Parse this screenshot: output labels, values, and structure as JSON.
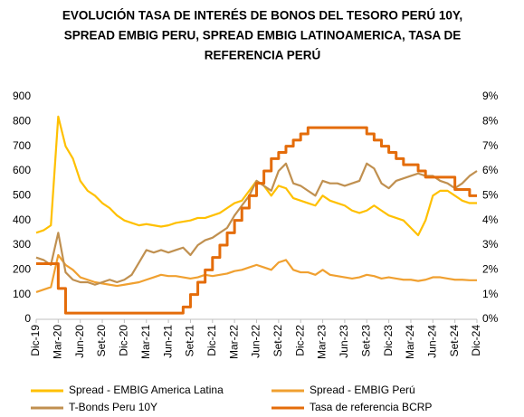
{
  "chart_data": {
    "type": "line",
    "title": [
      "EVOLUCIÓN TASA DE INTERÉS DE BONOS DEL TESORO PERÚ 10Y,",
      "SPREAD EMBIG PERU, SPREAD EMBIG LATINOAMERICA, TASA DE",
      "REFERENCIA PERÚ"
    ],
    "categories": [
      "Dic-19",
      null,
      null,
      "Mar-20",
      null,
      null,
      "Jun-20",
      null,
      null,
      "Set-20",
      null,
      null,
      "Dic-20",
      null,
      null,
      "Mar-21",
      null,
      null,
      "Jun-21",
      null,
      null,
      "Set-21",
      null,
      null,
      "Dic-21",
      null,
      null,
      "Mar-22",
      null,
      null,
      "Jun-22",
      null,
      null,
      "Set-22",
      null,
      null,
      "Dic-22",
      null,
      null,
      "Mar-23",
      null,
      null,
      "Jun-23",
      null,
      null,
      "Set-23",
      null,
      null,
      "Dic-23",
      null,
      null,
      "Mar-24",
      null,
      null,
      "Jun-24",
      null,
      null,
      "Set-24",
      null,
      null,
      "Dic-24"
    ],
    "series": [
      {
        "name": "Spread - EMBIG America Latina",
        "color": "#ffc000",
        "axis": "y",
        "values": [
          350,
          360,
          380,
          820,
          700,
          650,
          560,
          520,
          500,
          470,
          450,
          420,
          400,
          390,
          380,
          385,
          380,
          375,
          380,
          390,
          395,
          400,
          410,
          410,
          420,
          430,
          450,
          470,
          480,
          520,
          560,
          540,
          500,
          540,
          530,
          490,
          480,
          470,
          460,
          500,
          480,
          470,
          460,
          440,
          430,
          440,
          460,
          440,
          420,
          410,
          400,
          370,
          340,
          400,
          500,
          520,
          520,
          500,
          480,
          470,
          470
        ]
      },
      {
        "name": "Spread - EMBIG Perú",
        "color": "#f0a030",
        "axis": "y",
        "values": [
          110,
          120,
          130,
          260,
          220,
          200,
          170,
          160,
          150,
          145,
          140,
          135,
          140,
          145,
          150,
          160,
          170,
          180,
          175,
          175,
          170,
          165,
          170,
          180,
          175,
          180,
          185,
          195,
          200,
          210,
          220,
          210,
          200,
          230,
          240,
          200,
          190,
          190,
          180,
          200,
          180,
          175,
          170,
          165,
          170,
          180,
          175,
          165,
          170,
          165,
          160,
          160,
          155,
          160,
          170,
          170,
          165,
          160,
          160,
          158,
          158
        ]
      },
      {
        "name": "T-Bonds Peru 10Y",
        "color": "#c09050",
        "axis": "y2",
        "values": [
          2.5,
          2.4,
          2.2,
          3.5,
          1.9,
          1.6,
          1.5,
          1.5,
          1.4,
          1.5,
          1.6,
          1.5,
          1.6,
          1.8,
          2.3,
          2.8,
          2.7,
          2.8,
          2.7,
          2.8,
          2.9,
          2.6,
          3.0,
          3.2,
          3.3,
          3.5,
          3.7,
          4.2,
          4.6,
          5.0,
          5.6,
          5.4,
          5.2,
          6.0,
          6.3,
          5.5,
          5.4,
          5.2,
          5.0,
          5.6,
          5.5,
          5.5,
          5.4,
          5.5,
          5.6,
          6.3,
          6.1,
          5.5,
          5.3,
          5.6,
          5.7,
          5.8,
          5.9,
          5.8,
          5.8,
          5.6,
          5.5,
          5.3,
          5.5,
          5.8,
          6.0
        ]
      },
      {
        "name": "Tasa de referencia BCRP",
        "color": "#e46c0a",
        "axis": "y2",
        "step": true,
        "values": [
          2.25,
          2.25,
          2.25,
          1.25,
          0.25,
          0.25,
          0.25,
          0.25,
          0.25,
          0.25,
          0.25,
          0.25,
          0.25,
          0.25,
          0.25,
          0.25,
          0.25,
          0.25,
          0.25,
          0.25,
          0.5,
          1.0,
          1.5,
          2.0,
          2.5,
          3.0,
          3.5,
          4.0,
          4.5,
          5.0,
          5.5,
          6.0,
          6.5,
          6.75,
          7.0,
          7.25,
          7.5,
          7.75,
          7.75,
          7.75,
          7.75,
          7.75,
          7.75,
          7.75,
          7.75,
          7.5,
          7.25,
          7.0,
          6.75,
          6.5,
          6.25,
          6.25,
          6.0,
          5.75,
          5.75,
          5.75,
          5.75,
          5.25,
          5.25,
          5.0,
          5.0
        ]
      }
    ],
    "ylim": [
      0,
      900
    ],
    "yticks": [
      0,
      100,
      200,
      300,
      400,
      500,
      600,
      700,
      800,
      900
    ],
    "y2lim": [
      0,
      9
    ],
    "y2ticks": [
      {
        "value": 0,
        "label": "0%"
      },
      {
        "value": 1,
        "label": "1%"
      },
      {
        "value": 2,
        "label": "2%"
      },
      {
        "value": 3,
        "label": "3%"
      },
      {
        "value": 4,
        "label": "4%"
      },
      {
        "value": 5,
        "label": "5%"
      },
      {
        "value": 6,
        "label": "6%"
      },
      {
        "value": 7,
        "label": "7%"
      },
      {
        "value": 8,
        "label": "8%"
      },
      {
        "value": 9,
        "label": "9%"
      }
    ],
    "grid": false,
    "legend": "bottom"
  }
}
